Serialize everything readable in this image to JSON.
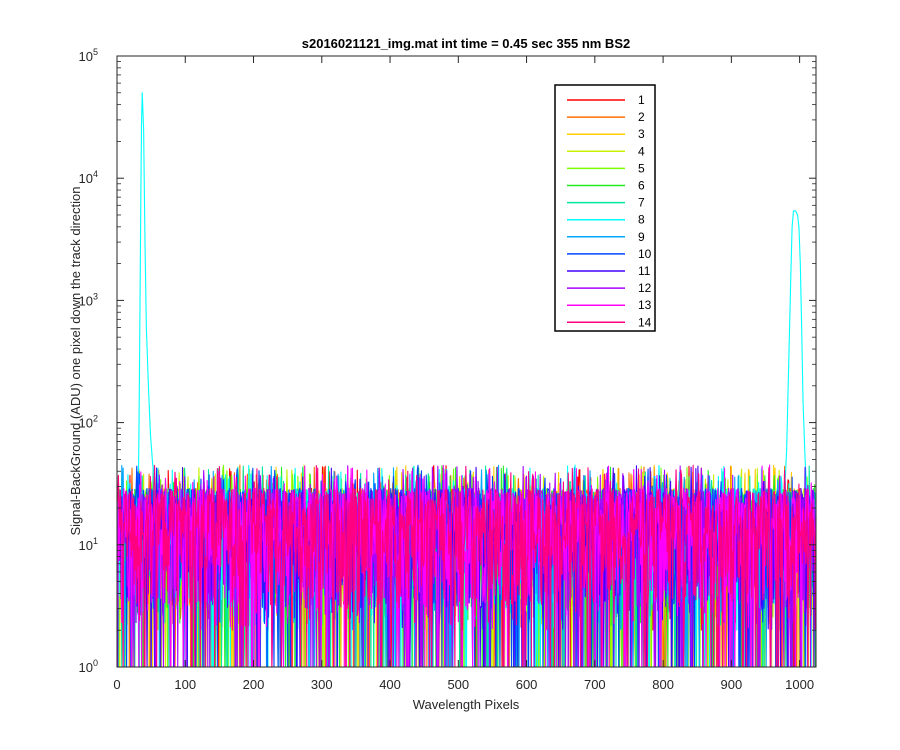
{
  "chart_data": {
    "type": "line",
    "title": "s2016021121_img.mat int time = 0.45 sec  355 nm BS2",
    "xlabel": "Wavelength Pixels",
    "ylabel": "Signal-BackGround (ADU) one pixel down the track direction",
    "xlim": [
      0,
      1024
    ],
    "ylim": [
      1,
      100000
    ],
    "yscale": "log",
    "x_ticks": [
      0,
      100,
      200,
      300,
      400,
      500,
      600,
      700,
      800,
      900,
      1000
    ],
    "x_tick_labels": [
      "0",
      "100",
      "200",
      "300",
      "400",
      "500",
      "600",
      "700",
      "800",
      "900",
      "1000"
    ],
    "y_ticks": [
      1,
      10,
      100,
      1000,
      10000,
      100000
    ],
    "y_tick_base": "10",
    "y_tick_exponents": [
      "0",
      "1",
      "2",
      "3",
      "4",
      "5"
    ],
    "grid": false,
    "legend_position": "top-right",
    "noise_floor_typical": 10,
    "noise_floor_max": 45,
    "series": [
      {
        "name": "1",
        "color": "#ff0000"
      },
      {
        "name": "2",
        "color": "#ff6e00"
      },
      {
        "name": "3",
        "color": "#ffcc00"
      },
      {
        "name": "4",
        "color": "#c8f000"
      },
      {
        "name": "5",
        "color": "#7cff00"
      },
      {
        "name": "6",
        "color": "#22ee22"
      },
      {
        "name": "7",
        "color": "#00e8a0"
      },
      {
        "name": "8",
        "color": "#00ffff",
        "peaks": [
          {
            "x": [
              30,
              32,
              34,
              35,
              36,
              38,
              40,
              42,
              45,
              48,
              52,
              55
            ],
            "y": [
              15,
              300,
              8000,
              30000,
              50000,
              25000,
              3000,
              600,
              200,
              80,
              40,
              20
            ]
          },
          {
            "x": [
              976,
              980,
              983,
              986,
              988,
              990,
              993,
              996,
              998,
              1000,
              1002,
              1004,
              1007,
              1010
            ],
            "y": [
              20,
              60,
              300,
              1500,
              4000,
              5400,
              5400,
              5000,
              4000,
              2000,
              600,
              150,
              50,
              25
            ]
          }
        ]
      },
      {
        "name": "9",
        "color": "#00a8ff"
      },
      {
        "name": "10",
        "color": "#0044ff"
      },
      {
        "name": "11",
        "color": "#4400ff"
      },
      {
        "name": "12",
        "color": "#aa00ff"
      },
      {
        "name": "13",
        "color": "#ff00ff"
      },
      {
        "name": "14",
        "color": "#ff0080"
      }
    ]
  }
}
